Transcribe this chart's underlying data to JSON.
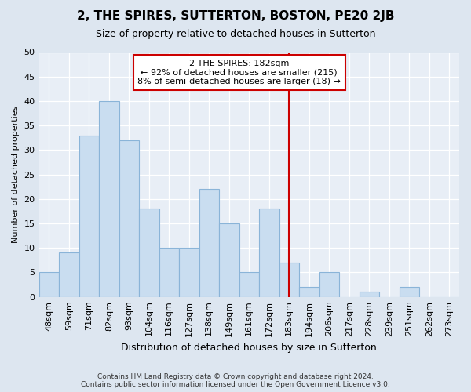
{
  "title": "2, THE SPIRES, SUTTERTON, BOSTON, PE20 2JB",
  "subtitle": "Size of property relative to detached houses in Sutterton",
  "xlabel": "Distribution of detached houses by size in Sutterton",
  "ylabel": "Number of detached properties",
  "categories": [
    "48sqm",
    "59sqm",
    "71sqm",
    "82sqm",
    "93sqm",
    "104sqm",
    "116sqm",
    "127sqm",
    "138sqm",
    "149sqm",
    "161sqm",
    "172sqm",
    "183sqm",
    "194sqm",
    "206sqm",
    "217sqm",
    "228sqm",
    "239sqm",
    "251sqm",
    "262sqm",
    "273sqm"
  ],
  "values": [
    5,
    9,
    33,
    40,
    32,
    18,
    10,
    10,
    22,
    15,
    5,
    18,
    7,
    2,
    5,
    0,
    1,
    0,
    2,
    0,
    0
  ],
  "bar_color": "#c9ddf0",
  "bar_edge_color": "#8ab4d8",
  "vline_x": 12,
  "vline_color": "#cc0000",
  "annotation_text": "2 THE SPIRES: 182sqm\n← 92% of detached houses are smaller (215)\n8% of semi-detached houses are larger (18) →",
  "annotation_box_color": "#cc0000",
  "ylim": [
    0,
    50
  ],
  "yticks": [
    0,
    5,
    10,
    15,
    20,
    25,
    30,
    35,
    40,
    45,
    50
  ],
  "footnote": "Contains HM Land Registry data © Crown copyright and database right 2024.\nContains public sector information licensed under the Open Government Licence v3.0.",
  "bg_color": "#dde6f0",
  "plot_bg_color": "#e8eef6",
  "grid_color": "#ffffff",
  "title_fontsize": 11,
  "subtitle_fontsize": 9,
  "xlabel_fontsize": 9,
  "ylabel_fontsize": 8,
  "tick_fontsize": 8,
  "annot_fontsize": 8
}
